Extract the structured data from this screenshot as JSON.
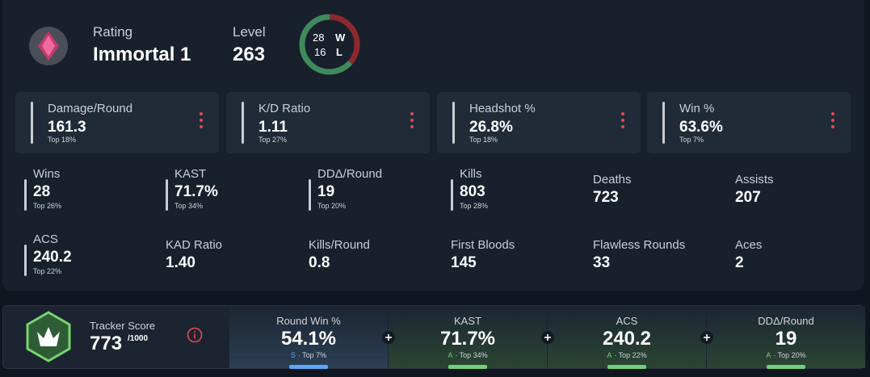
{
  "header": {
    "rating_label": "Rating",
    "rating": "Immortal 1",
    "level_label": "Level",
    "level": "263",
    "wins": 28,
    "wins_letter": "W",
    "losses": 16,
    "losses_letter": "L"
  },
  "cards": [
    {
      "label": "Damage/Round",
      "value": "161.3",
      "rank": "Top 18%"
    },
    {
      "label": "K/D Ratio",
      "value": "1.11",
      "rank": "Top 27%"
    },
    {
      "label": "Headshot %",
      "value": "26.8%",
      "rank": "Top 18%"
    },
    {
      "label": "Win %",
      "value": "63.6%",
      "rank": "Top 7%"
    }
  ],
  "stats": [
    [
      {
        "label": "Wins",
        "value": "28",
        "rank": "Top 26%"
      },
      {
        "label": "KAST",
        "value": "71.7%",
        "rank": "Top 34%"
      },
      {
        "label": "DDΔ/Round",
        "value": "19",
        "rank": "Top 20%"
      },
      {
        "label": "Kills",
        "value": "803",
        "rank": "Top 28%"
      },
      {
        "label": "Deaths",
        "value": "723"
      },
      {
        "label": "Assists",
        "value": "207"
      }
    ],
    [
      {
        "label": "ACS",
        "value": "240.2",
        "rank": "Top 22%"
      },
      {
        "label": "KAD Ratio",
        "value": "1.40"
      },
      {
        "label": "Kills/Round",
        "value": "0.8"
      },
      {
        "label": "First Bloods",
        "value": "145"
      },
      {
        "label": "Flawless Rounds",
        "value": "33"
      },
      {
        "label": "Aces",
        "value": "2"
      }
    ]
  ],
  "tracker": {
    "label": "Tracker Score",
    "score": "773",
    "max": "/1000",
    "metrics": [
      {
        "label": "Round Win %",
        "value": "54.1%",
        "grade": "S",
        "rank": "· Top 7%"
      },
      {
        "label": "KAST",
        "value": "71.7%",
        "grade": "A",
        "rank": "· Top 34%"
      },
      {
        "label": "ACS",
        "value": "240.2",
        "grade": "A",
        "rank": "· Top 22%"
      },
      {
        "label": "DDΔ/Round",
        "value": "19",
        "grade": "A",
        "rank": "· Top 20%"
      }
    ]
  }
}
